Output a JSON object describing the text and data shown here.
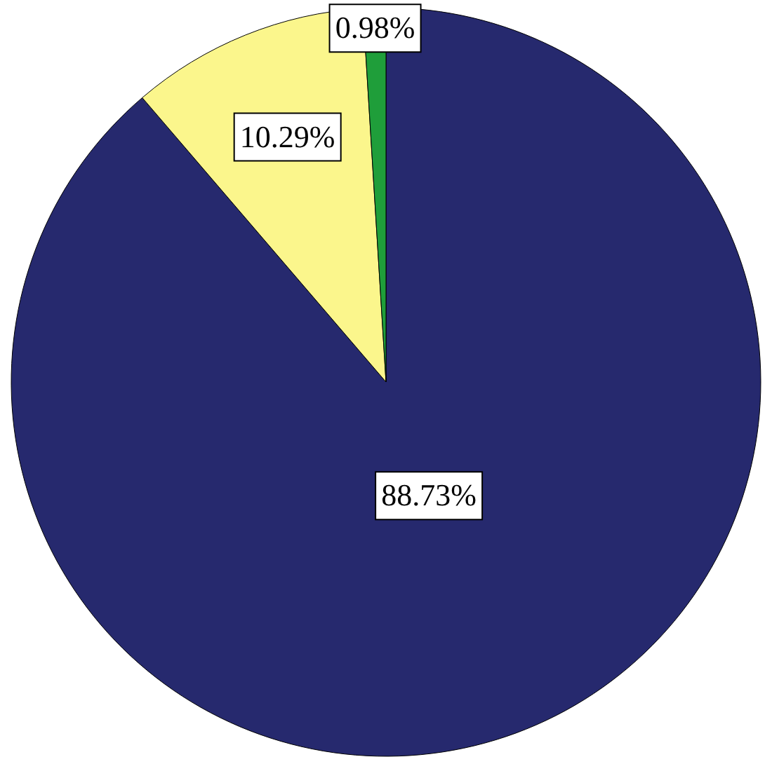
{
  "chart_data": {
    "type": "pie",
    "categories": [
      null,
      null,
      null
    ],
    "values": [
      88.73,
      10.29,
      0.98
    ],
    "colors": [
      "#26296e",
      "#fbf68c",
      "#1f9e3a"
    ],
    "value_labels": [
      "88.73%",
      "10.29%",
      "0.98%"
    ]
  }
}
